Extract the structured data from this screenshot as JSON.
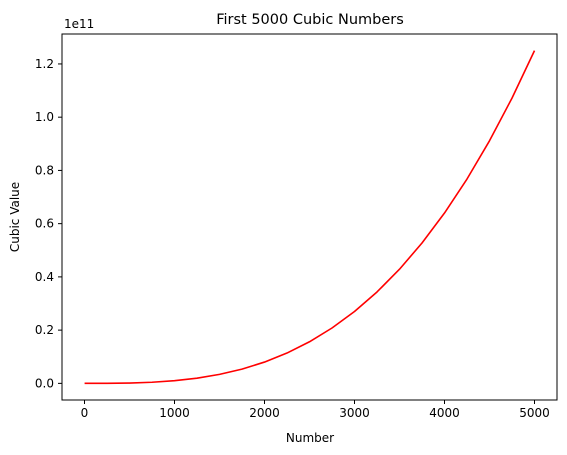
{
  "chart_data": {
    "type": "line",
    "title": "First 5000 Cubic Numbers",
    "xlabel": "Number",
    "ylabel": "Cubic Value",
    "offset_label": "1e11",
    "xlim": [
      -250,
      5250
    ],
    "ylim": [
      -0.0625,
      1.3125
    ],
    "x_ticks": [
      0,
      1000,
      2000,
      3000,
      4000,
      5000
    ],
    "x_tick_labels": [
      "0",
      "1000",
      "2000",
      "3000",
      "4000",
      "5000"
    ],
    "y_ticks": [
      0.0,
      0.2,
      0.4,
      0.6,
      0.8,
      1.0,
      1.2
    ],
    "y_tick_labels": [
      "0.0",
      "0.2",
      "0.4",
      "0.6",
      "0.8",
      "1.0",
      "1.2"
    ],
    "grid": false,
    "series": [
      {
        "color": "#ff0000",
        "x": [
          1,
          250,
          500,
          750,
          1000,
          1250,
          1500,
          1750,
          2000,
          2250,
          2500,
          2750,
          3000,
          3250,
          3500,
          3750,
          4000,
          4250,
          4500,
          4750,
          5000
        ],
        "y": [
          0.0,
          0.000156,
          0.00125,
          0.00422,
          0.01,
          0.0195,
          0.0338,
          0.0536,
          0.08,
          0.1139,
          0.1563,
          0.208,
          0.27,
          0.3433,
          0.4288,
          0.5273,
          0.64,
          0.7677,
          0.9113,
          1.0717,
          1.25
        ]
      }
    ]
  }
}
